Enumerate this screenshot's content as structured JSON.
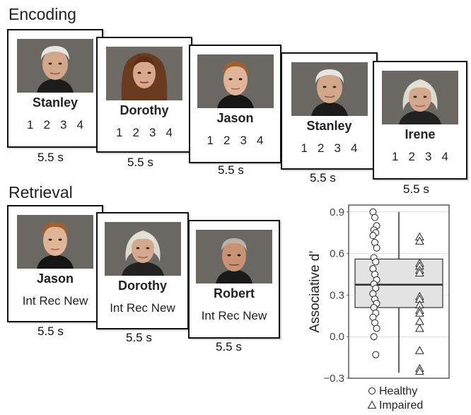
{
  "encoding": {
    "title": "Encoding",
    "trials": [
      {
        "name": "Stanley",
        "options": "1 2 3 4",
        "duration": "5.5 s",
        "face": "old-man-white-hair"
      },
      {
        "name": "Dorothy",
        "options": "1 2 3 4",
        "duration": "5.5 s",
        "face": "young-woman-curly-hair"
      },
      {
        "name": "Jason",
        "options": "1 2 3 4",
        "duration": "5.5 s",
        "face": "young-man"
      },
      {
        "name": "Stanley",
        "options": "1 2 3 4",
        "duration": "5.5 s",
        "face": "old-man-white-hair"
      },
      {
        "name": "Irene",
        "options": "1 2 3 4",
        "duration": "5.5 s",
        "face": "old-woman-white-hair"
      }
    ]
  },
  "retrieval": {
    "title": "Retrieval",
    "trials": [
      {
        "name": "Jason",
        "options": "Int Rec New",
        "duration": "5.5 s",
        "face": "young-man"
      },
      {
        "name": "Dorothy",
        "options": "Int Rec New",
        "duration": "5.5 s",
        "face": "old-woman-white-hair"
      },
      {
        "name": "Robert",
        "options": "Int Rec New",
        "duration": "5.5 s",
        "face": "old-man-dark-hair"
      }
    ]
  },
  "chart_data": {
    "type": "scatter",
    "ylabel": "Associative d’",
    "ylim": [
      -0.3,
      0.95
    ],
    "yticks": [
      -0.3,
      0.0,
      0.3,
      0.6,
      0.9
    ],
    "ytick_labels": [
      "−0.3",
      "0.0",
      "0.3",
      "0.6",
      "0.9"
    ],
    "grid": true,
    "legend": "bottom",
    "box": {
      "q1": 0.21,
      "median": 0.375,
      "q3": 0.56,
      "whisker_low": -0.26,
      "whisker_high": 0.9
    },
    "series": [
      {
        "name": "Healthy",
        "marker": "circle",
        "values": [
          0.9,
          0.86,
          0.8,
          0.77,
          0.75,
          0.73,
          0.68,
          0.64,
          0.57,
          0.54,
          0.49,
          0.45,
          0.41,
          0.38,
          0.35,
          0.31,
          0.27,
          0.24,
          0.21,
          0.17,
          0.14,
          0.1,
          0.06,
          0.0,
          -0.13
        ]
      },
      {
        "name": "Impaired",
        "marker": "triangle",
        "values": [
          0.72,
          0.69,
          0.53,
          0.51,
          0.48,
          0.46,
          0.29,
          0.27,
          0.23,
          0.19,
          0.17,
          0.11,
          0.06,
          -0.1,
          -0.23,
          -0.25
        ]
      }
    ]
  }
}
